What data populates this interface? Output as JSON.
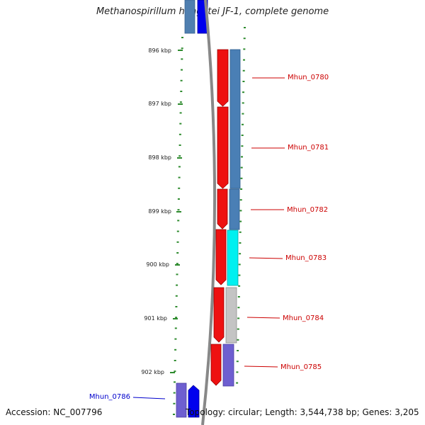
{
  "title": "Methanospirillum hungatei JF-1, complete genome",
  "footer": {
    "accession": "Accession: NC_007796",
    "topology": "Topology: circular; Length: 3,544,738 bp; Genes: 3,205"
  },
  "ticks": [
    {
      "label": "896 kbp",
      "kbp": 896
    },
    {
      "label": "897 kbp",
      "kbp": 897
    },
    {
      "label": "898 kbp",
      "kbp": 898
    },
    {
      "label": "899 kbp",
      "kbp": 899
    },
    {
      "label": "900 kbp",
      "kbp": 900
    },
    {
      "label": "901 kbp",
      "kbp": 901
    },
    {
      "label": "902 kbp",
      "kbp": 902
    }
  ],
  "genes": [
    {
      "name": "Mhun_0780",
      "color": "#cc0000"
    },
    {
      "name": "Mhun_0781",
      "color": "#cc0000"
    },
    {
      "name": "Mhun_0782",
      "color": "#cc0000"
    },
    {
      "name": "Mhun_0783",
      "color": "#cc0000"
    },
    {
      "name": "Mhun_0784",
      "color": "#cc0000"
    },
    {
      "name": "Mhun_0785",
      "color": "#cc0000"
    },
    {
      "name": "Mhun_0786",
      "color": "#0000cc"
    }
  ],
  "colors": {
    "forward_strand": "#ff0000",
    "reverse_strand": "#0000ff",
    "cog_steel": "#4682b4",
    "cog_cyan": "#00ffff",
    "cog_gray": "#c0c0c0",
    "cog_purple": "#6a5acd",
    "tick": "#2e8b2e",
    "backbone": "#808080"
  }
}
